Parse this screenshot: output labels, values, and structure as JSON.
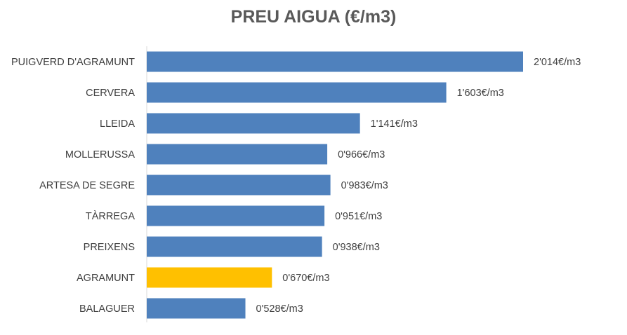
{
  "chart_data": {
    "type": "bar",
    "orientation": "horizontal",
    "title": "PREU AIGUA (€/m3)",
    "xlabel": "",
    "ylabel": "",
    "grid": false,
    "legend": "none",
    "xlim": [
      0,
      2.2
    ],
    "categories": [
      "PUIGVERD D'AGRAMUNT",
      "CERVERA",
      "LLEIDA",
      "MOLLERUSSA",
      "ARTESA DE SEGRE",
      "TÀRREGA",
      "PREIXENS",
      "AGRAMUNT",
      "BALAGUER"
    ],
    "values": [
      2.014,
      1.603,
      1.141,
      0.966,
      0.983,
      0.951,
      0.938,
      0.67,
      0.528
    ],
    "data_labels": [
      "2'014€/m3",
      "1'603€/m3",
      "1'141€/m3",
      "0'966€/m3",
      "0'983€/m3",
      "0'951€/m3",
      "0'938€/m3",
      "0'670€/m3",
      "0'528€/m3"
    ],
    "colors": {
      "default_bar": "#4F81BD",
      "highlight_bar": "#FFC000",
      "highlight_category": "AGRAMUNT",
      "label_text": "#404040",
      "axis_line": "#D9D9D9"
    }
  }
}
